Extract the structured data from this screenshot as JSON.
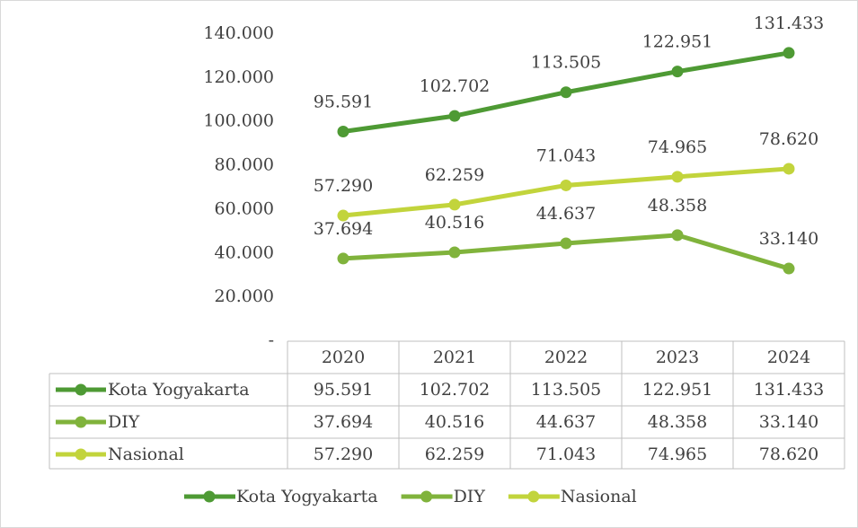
{
  "chart_data": {
    "type": "line",
    "categories": [
      "2020",
      "2021",
      "2022",
      "2023",
      "2024"
    ],
    "series": [
      {
        "name": "Kota Yogyakarta",
        "color": "#4e9a34",
        "values": [
          95591,
          102702,
          113505,
          122951,
          131433
        ],
        "value_labels": [
          "95.591",
          "102.702",
          "113.505",
          "122.951",
          "131.433"
        ]
      },
      {
        "name": "DIY",
        "color": "#80b33c",
        "values": [
          37694,
          40516,
          44637,
          48358,
          33140
        ],
        "value_labels": [
          "37.694",
          "40.516",
          "44.637",
          "48.358",
          "33.140"
        ]
      },
      {
        "name": "Nasional",
        "color": "#c2d43c",
        "values": [
          57290,
          62259,
          71043,
          74965,
          78620
        ],
        "value_labels": [
          "57.290",
          "62.259",
          "71.043",
          "74.965",
          "78.620"
        ]
      }
    ],
    "ylim": [
      0,
      140000
    ],
    "yticks": [
      {
        "value": 0,
        "label": "-"
      },
      {
        "value": 20000,
        "label": "20.000"
      },
      {
        "value": 40000,
        "label": "40.000"
      },
      {
        "value": 60000,
        "label": "60.000"
      },
      {
        "value": 80000,
        "label": "80.000"
      },
      {
        "value": 100000,
        "label": "100.000"
      },
      {
        "value": 120000,
        "label": "120.000"
      },
      {
        "value": 140000,
        "label": "140.000"
      }
    ],
    "grid": false,
    "data_table": true,
    "legend": "bottom"
  }
}
